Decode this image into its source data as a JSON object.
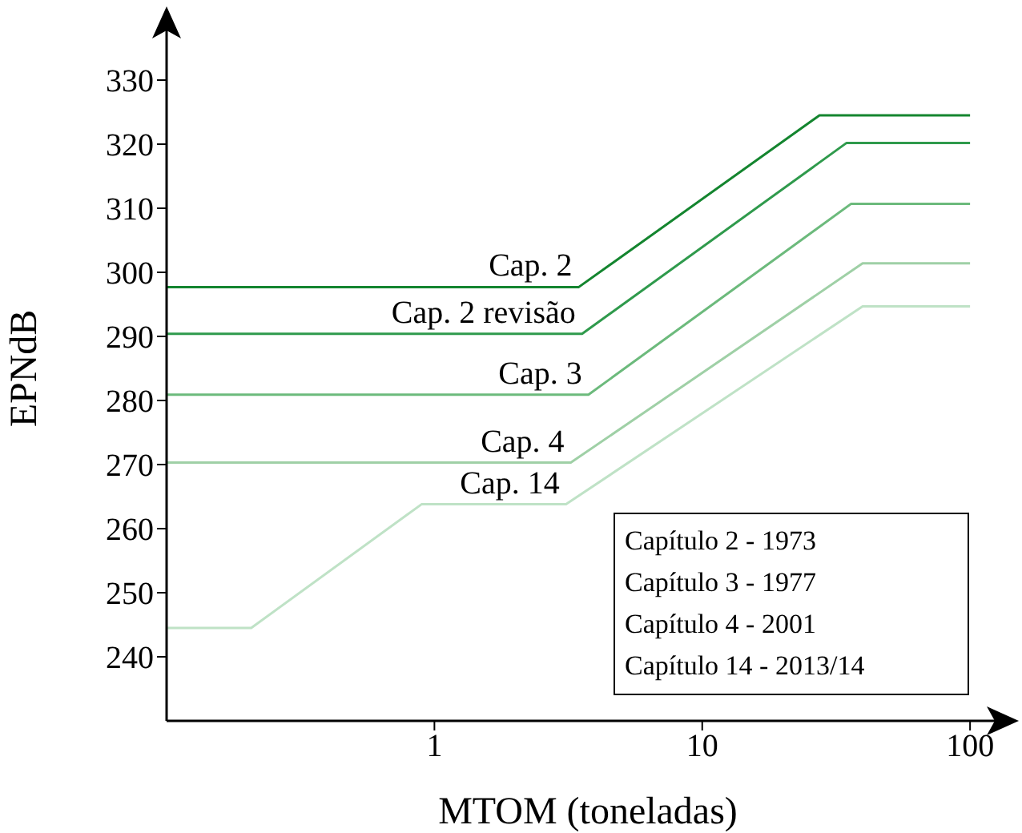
{
  "chart_data": {
    "type": "line",
    "xlabel": "MTOM (toneladas)",
    "ylabel": "EPNdB",
    "log": "x",
    "xlim": [
      0.1,
      140
    ],
    "xticks": [
      1,
      10,
      100
    ],
    "ylim": [
      230,
      340
    ],
    "yticks": [
      240,
      250,
      260,
      270,
      280,
      290,
      300,
      310,
      320,
      330
    ],
    "grid": false,
    "marker": "none",
    "line_style": "solid",
    "series": [
      {
        "name": "Cap. 2",
        "color": "#14852f",
        "x": [
          0.1,
          3.46,
          27.4,
          100
        ],
        "values": [
          297.7,
          297.7,
          324.5,
          324.5
        ]
      },
      {
        "name": "Cap. 2 revisão",
        "color": "#2f9a4c",
        "x": [
          0.1,
          3.56,
          34.6,
          100
        ],
        "values": [
          290.4,
          290.4,
          320.2,
          320.2
        ]
      },
      {
        "name": "Cap. 3",
        "color": "#6cba7c",
        "x": [
          0.1,
          3.76,
          36,
          100
        ],
        "values": [
          280.9,
          280.9,
          310.7,
          310.7
        ]
      },
      {
        "name": "Cap. 4",
        "color": "#9fd0a6",
        "x": [
          0.1,
          3.23,
          39.7,
          100
        ],
        "values": [
          270.3,
          270.3,
          301.4,
          301.4
        ]
      },
      {
        "name": "Cap. 14",
        "color": "#bfe2c6",
        "x": [
          0.1,
          0.207,
          0.895,
          3.1,
          39.7,
          100
        ],
        "values": [
          244.5,
          244.5,
          263.8,
          263.8,
          294.7,
          294.7
        ]
      }
    ],
    "annotations": [
      "Capítulo 2 - 1973",
      "Capítulo 3 - 1977",
      "Capítulo 4 - 2001",
      "Capítulo 14 - 2013/14"
    ]
  }
}
